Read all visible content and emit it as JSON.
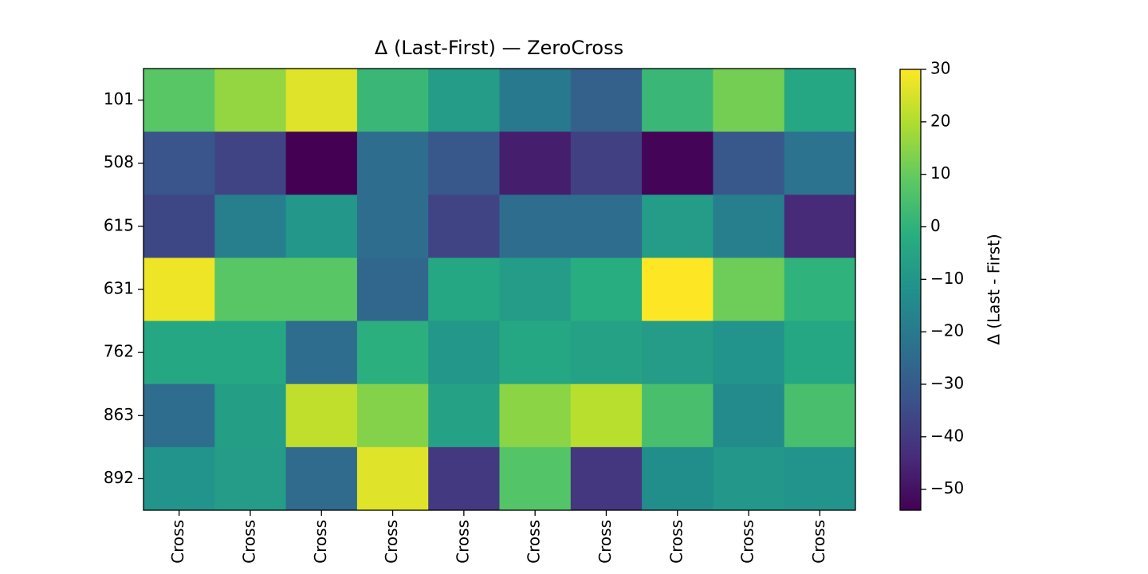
{
  "chart_data": {
    "type": "heatmap",
    "title": "Δ (Last-First) — ZeroCross",
    "colorbar_label": "Δ (Last - First)",
    "colormap": "viridis",
    "clim": [
      -54,
      30
    ],
    "cticks": [
      30,
      20,
      10,
      0,
      -10,
      -20,
      -30,
      -40,
      -50
    ],
    "rows": [
      "101",
      "508",
      "615",
      "631",
      "762",
      "863",
      "892"
    ],
    "columns": [
      "Cross",
      "Cross",
      "Cross",
      "Cross",
      "Cross",
      "Cross",
      "Cross",
      "Cross",
      "Cross",
      "Cross"
    ],
    "values": [
      [
        8,
        16,
        26,
        2,
        -8,
        -20,
        -28,
        2,
        12,
        -4
      ],
      [
        -32,
        -37,
        -54,
        -24,
        -31,
        -47,
        -38,
        -53,
        -31,
        -22
      ],
      [
        -36,
        -18,
        -10,
        -24,
        -37,
        -24,
        -24,
        -8,
        -18,
        -44
      ],
      [
        28,
        8,
        8,
        -26,
        -4,
        -8,
        -2,
        30,
        11,
        0
      ],
      [
        -4,
        -4,
        -24,
        -1,
        -10,
        -4,
        -6,
        -8,
        -11,
        -4
      ],
      [
        -24,
        -7,
        22,
        14,
        -6,
        15,
        21,
        5,
        -14,
        5
      ],
      [
        -11,
        -8,
        -25,
        26,
        -40,
        7,
        -41,
        -13,
        -10,
        -11
      ]
    ]
  }
}
